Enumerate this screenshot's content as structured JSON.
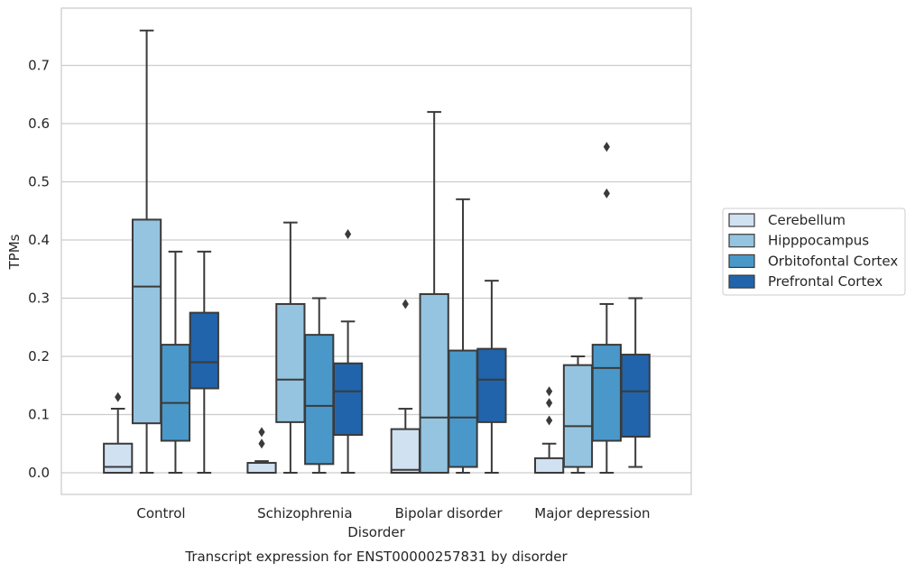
{
  "chart_data": {
    "type": "box",
    "title": "",
    "caption": "Transcript expression for ENST00000257831 by disorder",
    "xlabel": "Disorder",
    "ylabel": "TPMs",
    "ylim": [
      -0.038,
      0.8
    ],
    "yticks": [
      "0.0",
      "0.1",
      "0.2",
      "0.3",
      "0.4",
      "0.5",
      "0.6",
      "0.7"
    ],
    "grid": "horizontal",
    "legend_position": "right",
    "categories": [
      "Control",
      "Schizophrenia",
      "Bipolar disorder",
      "Major depression"
    ],
    "series": [
      {
        "name": "Cerebellum",
        "color": "#d0e1f2",
        "boxes": [
          {
            "whislo": 0.0,
            "q1": 0.0,
            "med": 0.01,
            "q3": 0.05,
            "whishi": 0.11,
            "fliers": [
              0.13
            ]
          },
          {
            "whislo": 0.0,
            "q1": 0.0,
            "med": 0.0,
            "q3": 0.017,
            "whishi": 0.02,
            "fliers": [
              0.05,
              0.07
            ]
          },
          {
            "whislo": 0.0,
            "q1": 0.0,
            "med": 0.005,
            "q3": 0.075,
            "whishi": 0.11,
            "fliers": [
              0.29
            ]
          },
          {
            "whislo": 0.0,
            "q1": 0.0,
            "med": 0.0,
            "q3": 0.025,
            "whishi": 0.05,
            "fliers": [
              0.09,
              0.12,
              0.14
            ]
          }
        ]
      },
      {
        "name": "Hipppocampus",
        "color": "#94c4df",
        "boxes": [
          {
            "whislo": 0.0,
            "q1": 0.085,
            "med": 0.32,
            "q3": 0.435,
            "whishi": 0.76,
            "fliers": []
          },
          {
            "whislo": 0.0,
            "q1": 0.087,
            "med": 0.16,
            "q3": 0.29,
            "whishi": 0.43,
            "fliers": []
          },
          {
            "whislo": 0.0,
            "q1": 0.0,
            "med": 0.095,
            "q3": 0.307,
            "whishi": 0.62,
            "fliers": []
          },
          {
            "whislo": 0.0,
            "q1": 0.01,
            "med": 0.08,
            "q3": 0.185,
            "whishi": 0.2,
            "fliers": []
          }
        ]
      },
      {
        "name": "Orbitofontal Cortex",
        "color": "#4a98c9",
        "boxes": [
          {
            "whislo": 0.0,
            "q1": 0.055,
            "med": 0.12,
            "q3": 0.22,
            "whishi": 0.38,
            "fliers": []
          },
          {
            "whislo": 0.0,
            "q1": 0.015,
            "med": 0.115,
            "q3": 0.237,
            "whishi": 0.3,
            "fliers": []
          },
          {
            "whislo": 0.0,
            "q1": 0.01,
            "med": 0.095,
            "q3": 0.21,
            "whishi": 0.47,
            "fliers": []
          },
          {
            "whislo": 0.0,
            "q1": 0.055,
            "med": 0.18,
            "q3": 0.22,
            "whishi": 0.29,
            "fliers": [
              0.48,
              0.56
            ]
          }
        ]
      },
      {
        "name": "Prefrontal Cortex",
        "color": "#2164ab",
        "boxes": [
          {
            "whislo": 0.0,
            "q1": 0.145,
            "med": 0.19,
            "q3": 0.275,
            "whishi": 0.38,
            "fliers": []
          },
          {
            "whislo": 0.0,
            "q1": 0.065,
            "med": 0.14,
            "q3": 0.188,
            "whishi": 0.26,
            "fliers": [
              0.41
            ]
          },
          {
            "whislo": 0.0,
            "q1": 0.087,
            "med": 0.16,
            "q3": 0.213,
            "whishi": 0.33,
            "fliers": []
          },
          {
            "whislo": 0.01,
            "q1": 0.062,
            "med": 0.14,
            "q3": 0.203,
            "whishi": 0.3,
            "fliers": []
          }
        ]
      }
    ]
  }
}
